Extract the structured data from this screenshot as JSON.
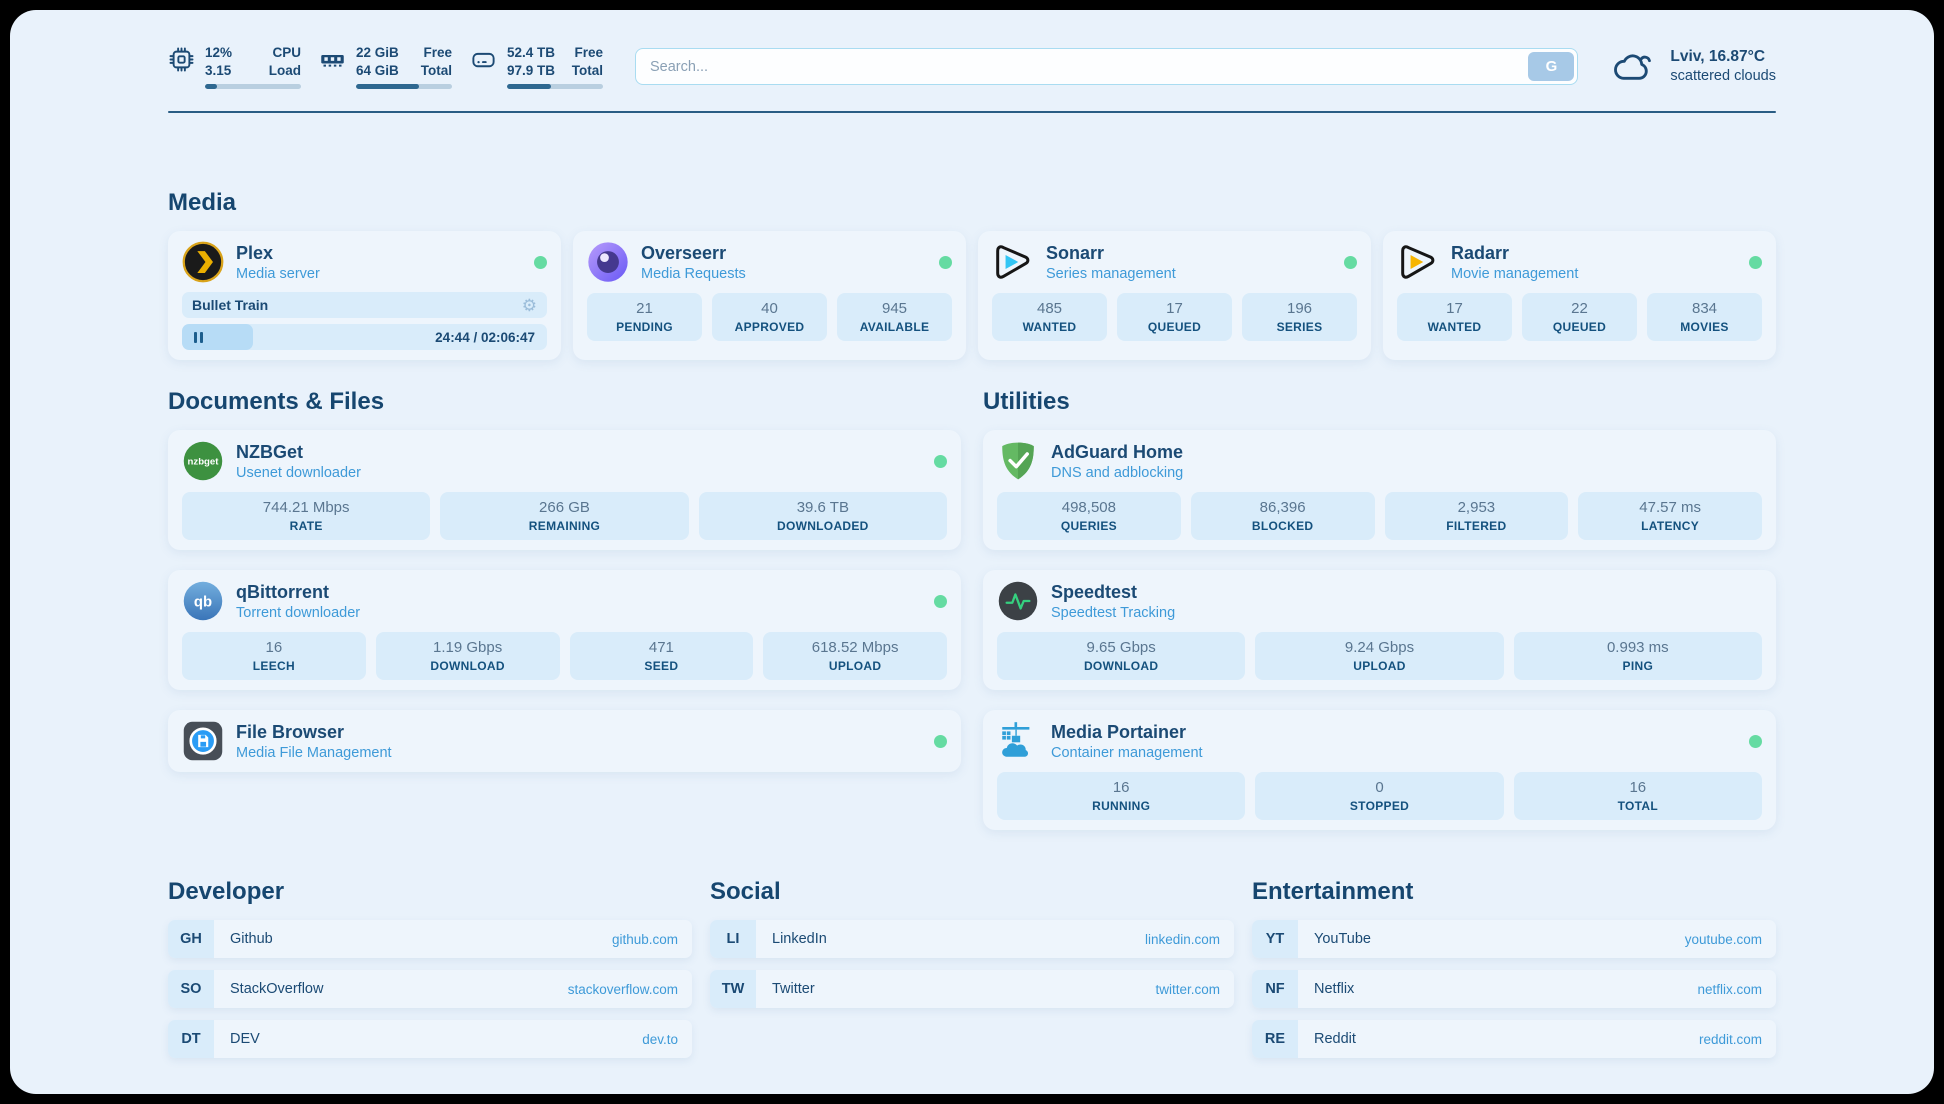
{
  "colors": {
    "status_online": "#65dba2",
    "accent_blue": "#3e9ad8",
    "navy": "#1b4a74"
  },
  "header": {
    "stats": [
      {
        "value_top": "12%",
        "label_top": "CPU",
        "value_bottom": "3.15",
        "label_bottom": "Load",
        "progress_pct": 12
      },
      {
        "value_top": "22 GiB",
        "label_top": "Free",
        "value_bottom": "64 GiB",
        "label_bottom": "Total",
        "progress_pct": 66
      },
      {
        "value_top": "52.4 TB",
        "label_top": "Free",
        "value_bottom": "97.9 TB",
        "label_bottom": "Total",
        "progress_pct": 46
      }
    ],
    "search": {
      "placeholder": "Search...",
      "button_label": "G"
    },
    "weather": {
      "location": "Lviv, 16.87°C",
      "condition": "scattered clouds"
    }
  },
  "media": {
    "title": "Media",
    "plex": {
      "title": "Plex",
      "subtitle": "Media server",
      "now_playing": "Bullet Train",
      "time": "24:44 / 02:06:47",
      "progress_pct": 19.5
    },
    "overseerr": {
      "title": "Overseerr",
      "subtitle": "Media Requests",
      "stats": [
        {
          "value": "21",
          "label": "PENDING"
        },
        {
          "value": "40",
          "label": "APPROVED"
        },
        {
          "value": "945",
          "label": "AVAILABLE"
        }
      ]
    },
    "sonarr": {
      "title": "Sonarr",
      "subtitle": "Series management",
      "stats": [
        {
          "value": "485",
          "label": "WANTED"
        },
        {
          "value": "17",
          "label": "QUEUED"
        },
        {
          "value": "196",
          "label": "SERIES"
        }
      ]
    },
    "radarr": {
      "title": "Radarr",
      "subtitle": "Movie management",
      "stats": [
        {
          "value": "17",
          "label": "WANTED"
        },
        {
          "value": "22",
          "label": "QUEUED"
        },
        {
          "value": "834",
          "label": "MOVIES"
        }
      ]
    }
  },
  "documents": {
    "title": "Documents & Files",
    "nzbget": {
      "title": "NZBGet",
      "subtitle": "Usenet downloader",
      "stats": [
        {
          "value": "744.21 Mbps",
          "label": "RATE"
        },
        {
          "value": "266 GB",
          "label": "REMAINING"
        },
        {
          "value": "39.6 TB",
          "label": "DOWNLOADED"
        }
      ]
    },
    "qbittorrent": {
      "title": "qBittorrent",
      "subtitle": "Torrent downloader",
      "stats": [
        {
          "value": "16",
          "label": "LEECH"
        },
        {
          "value": "1.19 Gbps",
          "label": "DOWNLOAD"
        },
        {
          "value": "471",
          "label": "SEED"
        },
        {
          "value": "618.52 Mbps",
          "label": "UPLOAD"
        }
      ]
    },
    "filebrowser": {
      "title": "File Browser",
      "subtitle": "Media File Management"
    }
  },
  "utilities": {
    "title": "Utilities",
    "adguard": {
      "title": "AdGuard Home",
      "subtitle": "DNS and adblocking",
      "stats": [
        {
          "value": "498,508",
          "label": "QUERIES"
        },
        {
          "value": "86,396",
          "label": "BLOCKED"
        },
        {
          "value": "2,953",
          "label": "FILTERED"
        },
        {
          "value": "47.57 ms",
          "label": "LATENCY"
        }
      ]
    },
    "speedtest": {
      "title": "Speedtest",
      "subtitle": "Speedtest Tracking",
      "stats": [
        {
          "value": "9.65 Gbps",
          "label": "DOWNLOAD"
        },
        {
          "value": "9.24 Gbps",
          "label": "UPLOAD"
        },
        {
          "value": "0.993 ms",
          "label": "PING"
        }
      ]
    },
    "portainer": {
      "title": "Media Portainer",
      "subtitle": "Container management",
      "stats": [
        {
          "value": "16",
          "label": "RUNNING"
        },
        {
          "value": "0",
          "label": "STOPPED"
        },
        {
          "value": "16",
          "label": "TOTAL"
        }
      ]
    }
  },
  "bookmarks": {
    "developer": {
      "title": "Developer",
      "items": [
        {
          "abbr": "GH",
          "name": "Github",
          "url": "github.com"
        },
        {
          "abbr": "SO",
          "name": "StackOverflow",
          "url": "stackoverflow.com"
        },
        {
          "abbr": "DT",
          "name": "DEV",
          "url": "dev.to"
        }
      ]
    },
    "social": {
      "title": "Social",
      "items": [
        {
          "abbr": "LI",
          "name": "LinkedIn",
          "url": "linkedin.com"
        },
        {
          "abbr": "TW",
          "name": "Twitter",
          "url": "twitter.com"
        }
      ]
    },
    "entertainment": {
      "title": "Entertainment",
      "items": [
        {
          "abbr": "YT",
          "name": "YouTube",
          "url": "youtube.com"
        },
        {
          "abbr": "NF",
          "name": "Netflix",
          "url": "netflix.com"
        },
        {
          "abbr": "RE",
          "name": "Reddit",
          "url": "reddit.com"
        }
      ]
    }
  }
}
